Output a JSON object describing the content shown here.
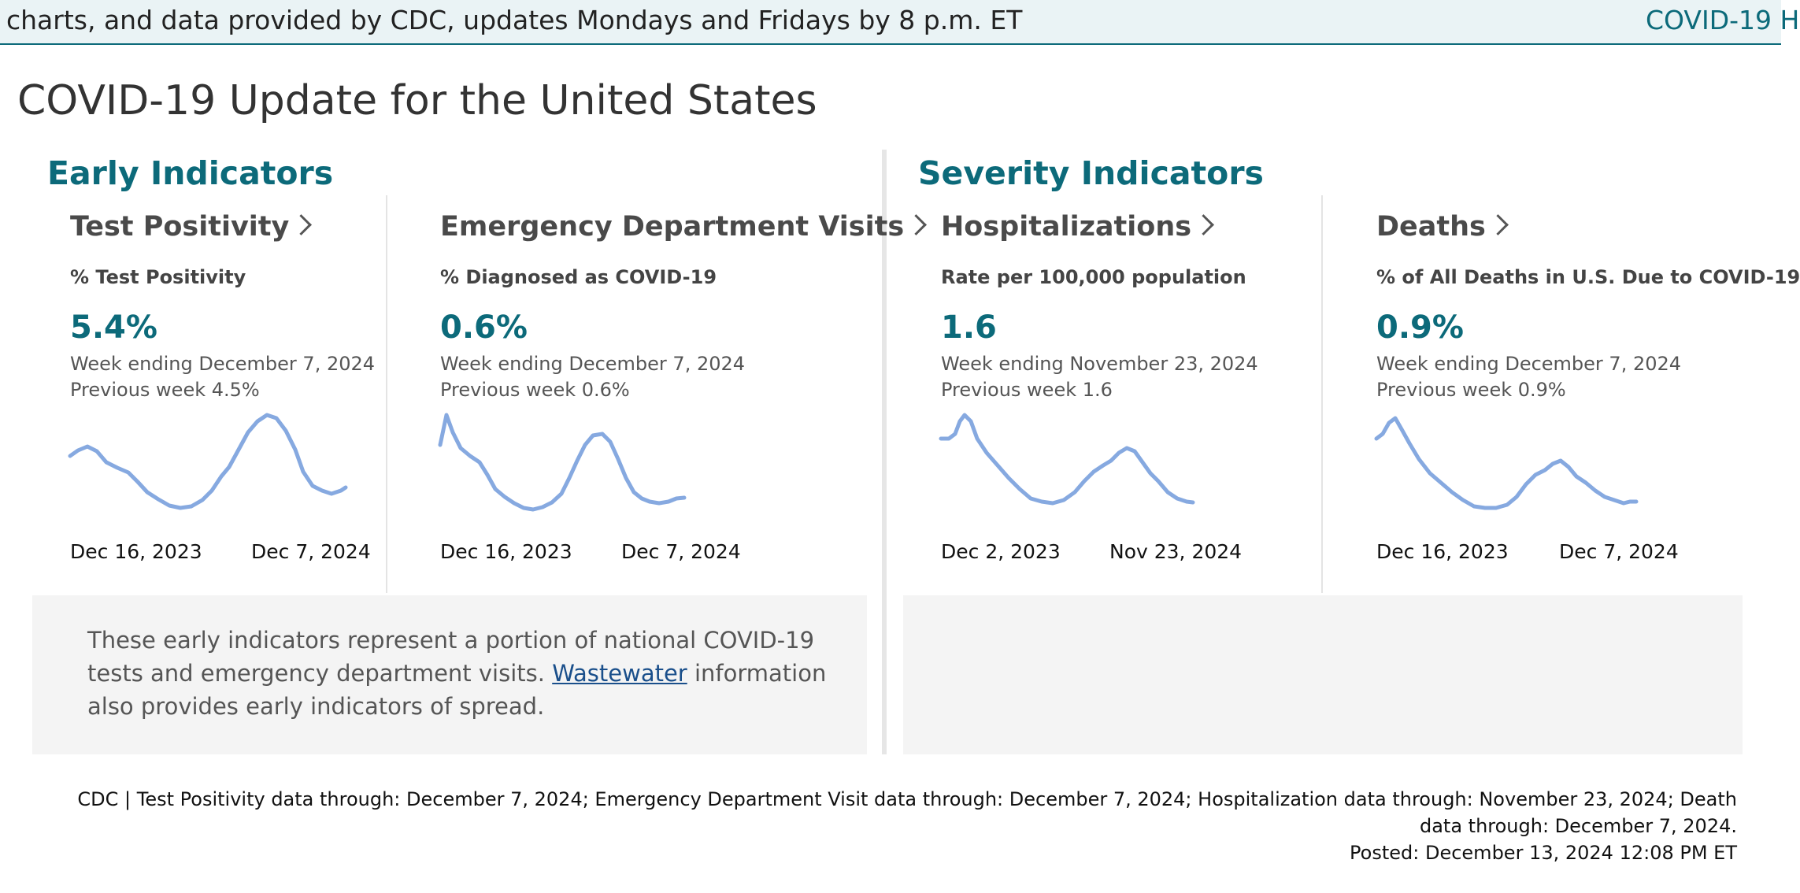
{
  "banner": {
    "text": "charts, and data provided by CDC, updates Mondays and Fridays by 8 p.m. ET",
    "link": "COVID-19 H"
  },
  "page": {
    "title": "COVID-19 Update for the United States"
  },
  "sections": {
    "early": "Early Indicators",
    "severity": "Severity Indicators"
  },
  "cards": [
    {
      "title": "Test Positivity",
      "metric": "% Test Positivity",
      "value": "5.4%",
      "week": "Week ending December 7, 2024",
      "previous": "Previous week 4.5%",
      "date_start": "Dec 16, 2023",
      "date_end": "Dec 7, 2024",
      "trend": [
        [
          0,
          52
        ],
        [
          10,
          45
        ],
        [
          22,
          40
        ],
        [
          34,
          46
        ],
        [
          46,
          60
        ],
        [
          60,
          67
        ],
        [
          74,
          73
        ],
        [
          86,
          85
        ],
        [
          98,
          98
        ],
        [
          112,
          107
        ],
        [
          126,
          115
        ],
        [
          140,
          118
        ],
        [
          154,
          116
        ],
        [
          168,
          108
        ],
        [
          180,
          96
        ],
        [
          192,
          78
        ],
        [
          202,
          66
        ],
        [
          214,
          44
        ],
        [
          226,
          22
        ],
        [
          238,
          8
        ],
        [
          250,
          0
        ],
        [
          262,
          4
        ],
        [
          274,
          20
        ],
        [
          286,
          44
        ],
        [
          296,
          72
        ],
        [
          308,
          90
        ],
        [
          320,
          96
        ],
        [
          332,
          100
        ],
        [
          344,
          96
        ],
        [
          350,
          92
        ]
      ]
    },
    {
      "title": "Emergency Department Visits",
      "metric": "% Diagnosed as COVID-19",
      "value": "0.6%",
      "week": "Week ending December 7, 2024",
      "previous": "Previous week 0.6%",
      "date_start": "Dec 16, 2023",
      "date_end": "Dec 7, 2024",
      "trend": [
        [
          0,
          38
        ],
        [
          8,
          0
        ],
        [
          16,
          22
        ],
        [
          26,
          42
        ],
        [
          38,
          52
        ],
        [
          50,
          60
        ],
        [
          60,
          76
        ],
        [
          70,
          94
        ],
        [
          82,
          104
        ],
        [
          94,
          112
        ],
        [
          106,
          118
        ],
        [
          118,
          120
        ],
        [
          130,
          117
        ],
        [
          142,
          111
        ],
        [
          154,
          100
        ],
        [
          164,
          80
        ],
        [
          174,
          58
        ],
        [
          184,
          38
        ],
        [
          194,
          26
        ],
        [
          206,
          24
        ],
        [
          216,
          34
        ],
        [
          226,
          56
        ],
        [
          236,
          80
        ],
        [
          246,
          98
        ],
        [
          256,
          106
        ],
        [
          266,
          110
        ],
        [
          278,
          112
        ],
        [
          290,
          110
        ],
        [
          300,
          106
        ],
        [
          310,
          105
        ]
      ]
    },
    {
      "title": "Hospitalizations",
      "metric": "Rate per 100,000 population",
      "value": "1.6",
      "week": "Week ending November 23, 2024",
      "previous": "Previous week 1.6",
      "date_start": "Dec 2, 2023",
      "date_end": "Nov 23, 2024",
      "trend": [
        [
          0,
          30
        ],
        [
          10,
          30
        ],
        [
          18,
          24
        ],
        [
          24,
          8
        ],
        [
          30,
          0
        ],
        [
          38,
          8
        ],
        [
          46,
          30
        ],
        [
          58,
          48
        ],
        [
          72,
          64
        ],
        [
          86,
          80
        ],
        [
          100,
          94
        ],
        [
          114,
          106
        ],
        [
          128,
          110
        ],
        [
          142,
          112
        ],
        [
          156,
          108
        ],
        [
          170,
          98
        ],
        [
          182,
          84
        ],
        [
          194,
          72
        ],
        [
          206,
          64
        ],
        [
          216,
          58
        ],
        [
          226,
          48
        ],
        [
          236,
          42
        ],
        [
          246,
          46
        ],
        [
          256,
          60
        ],
        [
          266,
          74
        ],
        [
          276,
          84
        ],
        [
          288,
          98
        ],
        [
          300,
          106
        ],
        [
          312,
          110
        ],
        [
          320,
          111
        ]
      ]
    },
    {
      "title": "Deaths",
      "metric": "% of All Deaths in U.S. Due to COVID-19",
      "value": "0.9%",
      "week": "Week ending December 7, 2024",
      "previous": "Previous week 0.9%",
      "date_start": "Dec 16, 2023",
      "date_end": "Dec 7, 2024",
      "trend": [
        [
          0,
          30
        ],
        [
          8,
          24
        ],
        [
          16,
          10
        ],
        [
          24,
          4
        ],
        [
          32,
          18
        ],
        [
          42,
          36
        ],
        [
          54,
          56
        ],
        [
          68,
          74
        ],
        [
          82,
          86
        ],
        [
          96,
          98
        ],
        [
          110,
          108
        ],
        [
          124,
          116
        ],
        [
          138,
          118
        ],
        [
          152,
          118
        ],
        [
          166,
          114
        ],
        [
          178,
          104
        ],
        [
          190,
          88
        ],
        [
          202,
          76
        ],
        [
          214,
          70
        ],
        [
          224,
          62
        ],
        [
          234,
          58
        ],
        [
          244,
          66
        ],
        [
          254,
          78
        ],
        [
          266,
          86
        ],
        [
          278,
          96
        ],
        [
          290,
          104
        ],
        [
          302,
          108
        ],
        [
          314,
          112
        ],
        [
          322,
          110
        ],
        [
          330,
          110
        ]
      ]
    }
  ],
  "note": {
    "before": "These early indicators represent a portion of national COVID-19 tests and emergency department visits. ",
    "link": "Wastewater",
    "after": " information also provides early indicators of spread."
  },
  "footer": {
    "line1": "CDC | Test Positivity data through: December 7, 2024; Emergency Department Visit data through: December 7, 2024; Hospitalization data through: November 23, 2024; Death data through: December 7, 2024.",
    "posted": "Posted: December 13, 2024 12:08 PM ET"
  },
  "colors": {
    "accent": "#0c6a7a",
    "sparkline": "#86a9e0",
    "link": "#1a4f8b"
  }
}
